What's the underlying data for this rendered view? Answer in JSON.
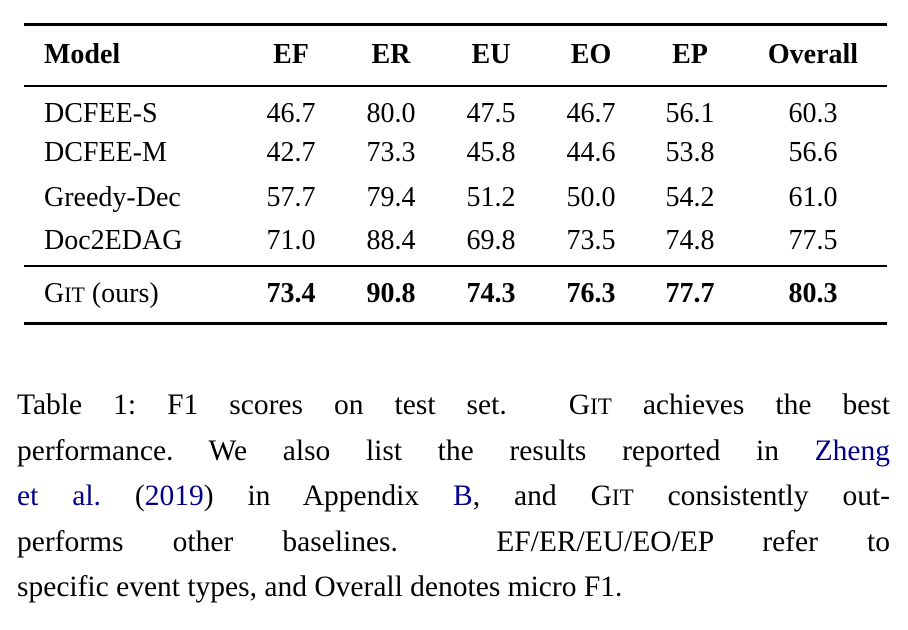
{
  "colors": {
    "background": "#ffffff",
    "text": "#000000",
    "link": "#00008B",
    "rule": "#000000"
  },
  "table": {
    "headers": [
      "Model",
      "EF",
      "ER",
      "EU",
      "EO",
      "EP",
      "Overall"
    ],
    "rows": [
      {
        "model": "DCFEE-S",
        "values": [
          "46.7",
          "80.0",
          "47.5",
          "46.7",
          "56.1",
          "60.3"
        ]
      },
      {
        "model": "DCFEE-M",
        "values": [
          "42.7",
          "73.3",
          "45.8",
          "44.6",
          "53.8",
          "56.6"
        ]
      },
      {
        "model": "Greedy-Dec",
        "values": [
          "57.7",
          "79.4",
          "51.2",
          "50.0",
          "54.2",
          "61.0"
        ]
      },
      {
        "model": "Doc2EDAG",
        "values": [
          "71.0",
          "88.4",
          "69.8",
          "73.5",
          "74.8",
          "77.5"
        ]
      }
    ],
    "git_row": {
      "label": {
        "cap": "G",
        "smallcaps": "IT",
        "rest": " (ours)"
      },
      "values": [
        "73.4",
        "90.8",
        "74.3",
        "76.3",
        "77.7",
        "80.3"
      ]
    }
  },
  "caption": {
    "lines": [
      {
        "justify": true,
        "segments": [
          {
            "t": "Table 1: F1 scores on test set.  "
          },
          {
            "t": "G"
          },
          {
            "t": "IT",
            "c": "sc"
          },
          {
            "t": " achieves the best"
          }
        ]
      },
      {
        "justify": true,
        "segments": [
          {
            "t": "performance. We also list the results reported in "
          },
          {
            "t": "Zheng",
            "c": "link",
            "name": "zheng-citation-link"
          }
        ]
      },
      {
        "justify": true,
        "segments": [
          {
            "t": "et al.",
            "c": "link",
            "name": "etal-citation-link"
          },
          {
            "t": " ("
          },
          {
            "t": "2019",
            "c": "link",
            "name": "year-citation-link"
          },
          {
            "t": ") in Appendix "
          },
          {
            "t": "B",
            "c": "link",
            "name": "appendix-b-link"
          },
          {
            "t": ", and "
          },
          {
            "t": "G"
          },
          {
            "t": "IT",
            "c": "sc"
          },
          {
            "t": " consistently out-"
          }
        ]
      },
      {
        "justify": true,
        "segments": [
          {
            "t": "performs other baselines.  EF/ER/EU/EO/EP refer to"
          }
        ]
      },
      {
        "justify": false,
        "segments": [
          {
            "t": "specific event types, and Overall denotes micro F1."
          }
        ]
      }
    ]
  }
}
